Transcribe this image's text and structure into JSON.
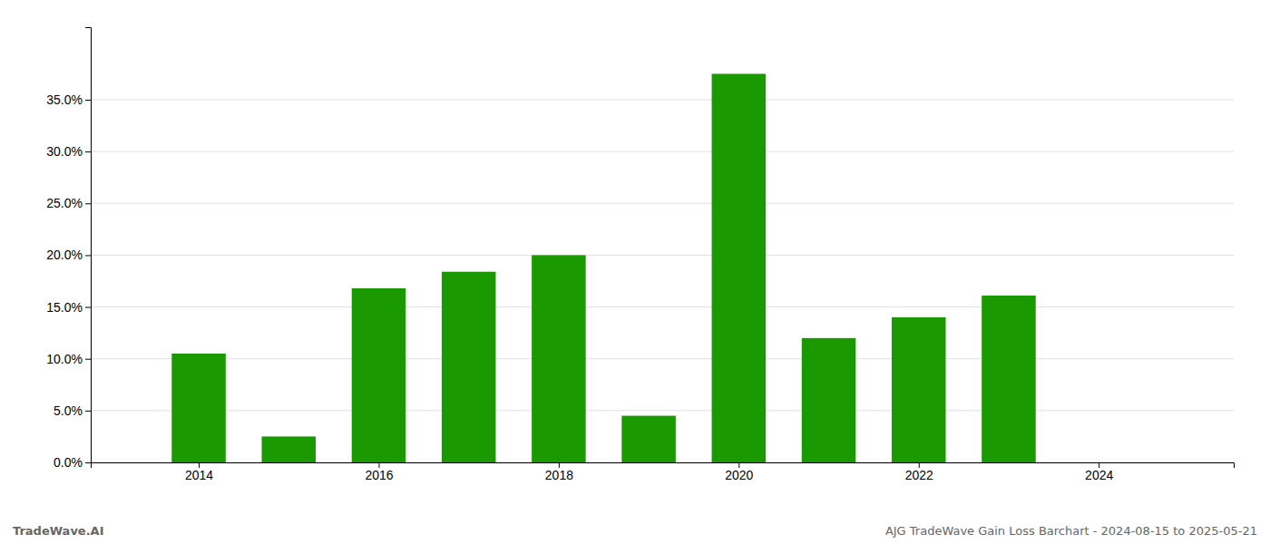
{
  "chart_data": {
    "type": "bar",
    "x": [
      2014,
      2015,
      2016,
      2017,
      2018,
      2019,
      2020,
      2021,
      2022,
      2023,
      2024
    ],
    "values": [
      0.105,
      0.025,
      0.168,
      0.184,
      0.2,
      0.045,
      0.375,
      0.12,
      0.14,
      0.161,
      0.0
    ],
    "color": "#1a9a00",
    "xlim": [
      2012.8,
      2025.5
    ],
    "xticks": [
      2014,
      2016,
      2018,
      2020,
      2022,
      2024
    ],
    "ylim": [
      0,
      0.42
    ],
    "yticks": [
      {
        "value": 0.0,
        "label": "0.0%"
      },
      {
        "value": 0.05,
        "label": "5.0%"
      },
      {
        "value": 0.1,
        "label": "10.0%"
      },
      {
        "value": 0.15,
        "label": "15.0%"
      },
      {
        "value": 0.2,
        "label": "20.0%"
      },
      {
        "value": 0.25,
        "label": "25.0%"
      },
      {
        "value": 0.3,
        "label": "30.0%"
      },
      {
        "value": 0.35,
        "label": "35.0%"
      }
    ],
    "grid": true,
    "annotations": [
      "TradeWave.AI",
      "AJG TradeWave Gain Loss Barchart - 2024-08-15 to 2025-05-21"
    ]
  }
}
